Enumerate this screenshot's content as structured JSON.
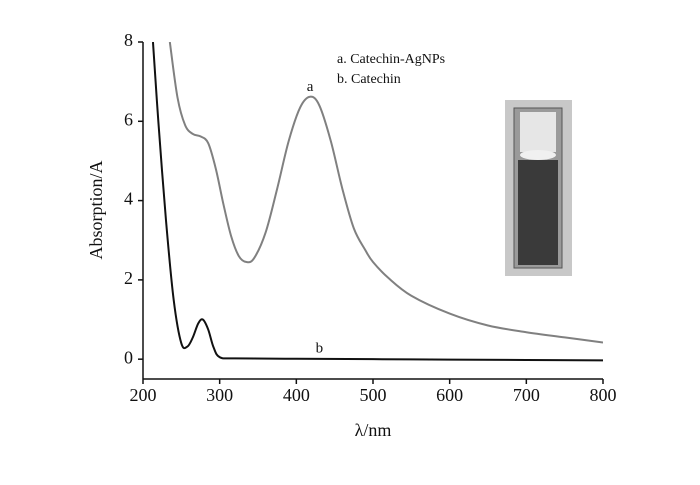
{
  "chart_data": {
    "type": "line",
    "xlabel": "λ/nm",
    "ylabel": "Absorption/A",
    "xlim": [
      200,
      800
    ],
    "xticks": [
      200,
      300,
      400,
      500,
      600,
      700,
      800
    ],
    "ylim": [
      -0.5,
      8
    ],
    "yticks": [
      0,
      2,
      4,
      6,
      8
    ],
    "series": [
      {
        "name": "a. Catechin-AgNPs",
        "color": "#808080",
        "x": [
          235,
          245,
          255,
          265,
          275,
          285,
          295,
          305,
          315,
          325,
          335,
          345,
          360,
          375,
          390,
          405,
          418,
          430,
          445,
          460,
          475,
          490,
          500,
          520,
          550,
          600,
          650,
          700,
          750,
          800
        ],
        "values": [
          8,
          6.6,
          5.9,
          5.68,
          5.62,
          5.45,
          4.8,
          3.9,
          3.1,
          2.6,
          2.45,
          2.55,
          3.2,
          4.3,
          5.5,
          6.35,
          6.62,
          6.4,
          5.5,
          4.3,
          3.3,
          2.75,
          2.45,
          2.05,
          1.6,
          1.15,
          0.85,
          0.68,
          0.55,
          0.42
        ]
      },
      {
        "name": "b. Catechin",
        "color": "#111111",
        "x": [
          213,
          220,
          230,
          240,
          250,
          258,
          265,
          272,
          278,
          285,
          292,
          300,
          320,
          400,
          500,
          600,
          700,
          800
        ],
        "values": [
          8,
          6.0,
          3.5,
          1.5,
          0.4,
          0.32,
          0.55,
          0.9,
          1.0,
          0.75,
          0.3,
          0.05,
          0.02,
          0.01,
          0.0,
          -0.01,
          -0.02,
          -0.03
        ]
      }
    ],
    "annotations": [
      {
        "text": "a",
        "x": 418,
        "y": 6.85
      },
      {
        "text": "b",
        "x": 430,
        "y": 0.25
      }
    ]
  }
}
